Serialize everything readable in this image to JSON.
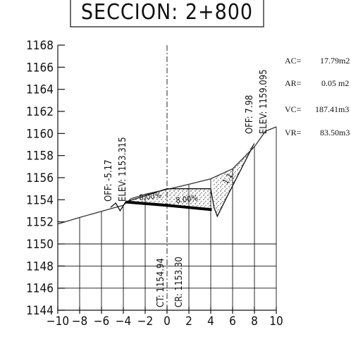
{
  "title": "SECCION:  2+800",
  "chart_data": {
    "type": "cross-section",
    "x_ticks": [
      "-10",
      "-8",
      "-6",
      "-4",
      "-2",
      "0",
      "2",
      "4",
      "6",
      "8",
      "10"
    ],
    "y_ticks": [
      "1168",
      "1166",
      "1164",
      "1162",
      "1160",
      "1158",
      "1156",
      "1154",
      "1152",
      "1150",
      "1148",
      "1146",
      "1144"
    ],
    "xlim": [
      -10,
      10
    ],
    "ylim": [
      1144,
      1168
    ],
    "terrain": [
      [
        -10,
        1151.8
      ],
      [
        -8,
        1152.4
      ],
      [
        -6,
        1152.95
      ],
      [
        -4.4,
        1153.4
      ],
      [
        -4,
        1153.5
      ],
      [
        -3.3,
        1154.1
      ],
      [
        -2,
        1154.5
      ],
      [
        0,
        1154.94
      ],
      [
        2,
        1155.4
      ],
      [
        4,
        1155.9
      ],
      [
        6,
        1156.8
      ],
      [
        8,
        1158.8
      ],
      [
        9,
        1160.2
      ],
      [
        10,
        1160.6
      ]
    ],
    "design_section": [
      [
        -5.17,
        1153.315
      ],
      [
        -4.7,
        1153.7
      ],
      [
        -4.3,
        1153.0
      ],
      [
        -3.8,
        1153.8
      ],
      [
        0,
        1155.0
      ],
      [
        4,
        1155.0
      ],
      [
        4.3,
        1153.3
      ],
      [
        4.6,
        1152.5
      ],
      [
        5.5,
        1154.3
      ],
      [
        7.98,
        1159.095
      ]
    ],
    "subgrade": [
      [
        -3.8,
        1153.8
      ],
      [
        0,
        1153.5
      ],
      [
        4.1,
        1153.1
      ]
    ],
    "left_offset": {
      "off_label": "OFF: -5.17",
      "elev_label": "ELEV: 1153.315"
    },
    "right_offset": {
      "off_label": "OFF: 7.98",
      "elev_label": "ELEV: 1159.095"
    },
    "slope_left": "8.00%",
    "slope_right": "8.00%",
    "side_slope": "1.1",
    "ct_label": "CT: 1154.94",
    "cr_label": "CR: 1153.30"
  },
  "summary": [
    {
      "key": "AC=",
      "value": "17.79m2"
    },
    {
      "key": "AR=",
      "value": "0.05 m2"
    },
    {
      "key": "VC=",
      "value": "187.41m3"
    },
    {
      "key": "VR=",
      "value": "83.50m3"
    }
  ]
}
